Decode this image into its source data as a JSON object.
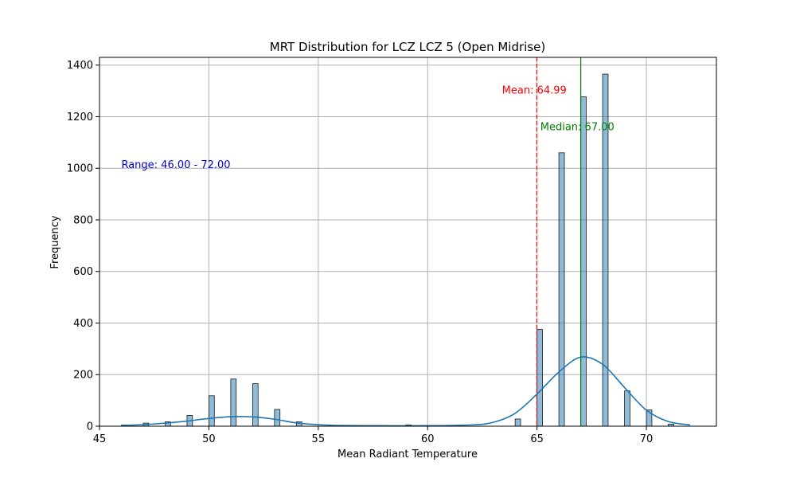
{
  "chart_data": {
    "type": "bar",
    "title": "MRT Distribution for LCZ LCZ 5 (Open Midrise)",
    "xlabel": "Mean Radiant Temperature",
    "ylabel": "Frequency",
    "xlim": [
      45,
      73.2
    ],
    "ylim": [
      0,
      1430
    ],
    "xticks": [
      45,
      50,
      55,
      60,
      65,
      70
    ],
    "yticks": [
      0,
      200,
      400,
      600,
      800,
      1000,
      1200,
      1400
    ],
    "grid": true,
    "bar_width": 0.25,
    "bar_color": "#1f77b4",
    "bars": [
      {
        "x": 46,
        "value": 5
      },
      {
        "x": 47,
        "value": 12
      },
      {
        "x": 48,
        "value": 17
      },
      {
        "x": 49,
        "value": 42
      },
      {
        "x": 50,
        "value": 118
      },
      {
        "x": 51,
        "value": 183
      },
      {
        "x": 52,
        "value": 165
      },
      {
        "x": 53,
        "value": 65
      },
      {
        "x": 54,
        "value": 17
      },
      {
        "x": 59,
        "value": 5
      },
      {
        "x": 64,
        "value": 28
      },
      {
        "x": 65,
        "value": 375
      },
      {
        "x": 66,
        "value": 1060
      },
      {
        "x": 67,
        "value": 1277
      },
      {
        "x": 68,
        "value": 1365
      },
      {
        "x": 69,
        "value": 137
      },
      {
        "x": 70,
        "value": 63
      },
      {
        "x": 71,
        "value": 8
      }
    ],
    "kde": {
      "color": "#1f77b4",
      "x": [
        46,
        47,
        48,
        49,
        50,
        51,
        52,
        53,
        54,
        55,
        56,
        58,
        60,
        62,
        63,
        64,
        65,
        66,
        67,
        68,
        69,
        70,
        71,
        72
      ],
      "y": [
        3,
        6,
        12,
        20,
        30,
        37,
        36,
        27,
        13,
        6,
        3,
        2,
        2,
        5,
        15,
        50,
        125,
        210,
        268,
        240,
        150,
        62,
        18,
        5
      ]
    },
    "reference_lines": [
      {
        "name": "mean",
        "x": 64.99,
        "color": "#ff0000",
        "style": "dashed",
        "label": "Mean: 64.99"
      },
      {
        "name": "median",
        "x": 67.0,
        "color": "#008000",
        "style": "solid",
        "label": "Median: 67.00"
      }
    ],
    "annotations": [
      {
        "name": "range",
        "text": "Range: 46.00 - 72.00",
        "color": "#0000cc",
        "x": 46,
        "y": 1000
      },
      {
        "name": "mean",
        "text": "Mean: 64.99",
        "color": "#ff0000",
        "x": 63.4,
        "y": 1290
      },
      {
        "name": "median",
        "text": "Median: 67.00",
        "color": "#008000",
        "x": 65.15,
        "y": 1147
      }
    ]
  }
}
